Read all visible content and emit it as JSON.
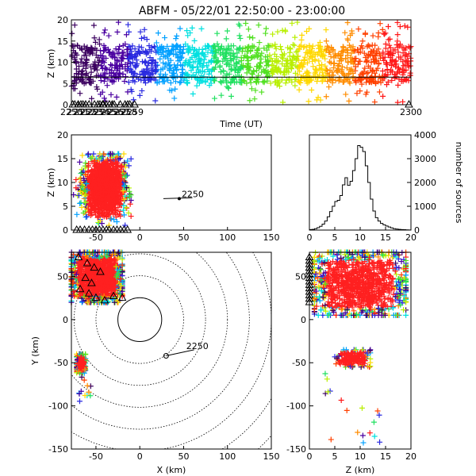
{
  "title": "ABFM - 05/22/01 22:50:00 - 23:00:00",
  "colors": {
    "background": "#ffffff",
    "axes": "#000000",
    "dense_core": "#ff2020",
    "time_rainbow": [
      "#3b005f",
      "#4a00a0",
      "#2a2ae0",
      "#00a0ff",
      "#00e0e0",
      "#20e060",
      "#50e020",
      "#b8ef00",
      "#ffd800",
      "#ff8c00",
      "#ff4000",
      "#ff1818"
    ]
  },
  "chart_data": [
    {
      "id": "time-height",
      "type": "scatter",
      "title": "ABFM - 05/22/01 22:50:00 - 23:00:00",
      "xlabel": "Time (UT)",
      "ylabel": "Z (km)",
      "xlim": [
        2250,
        2300
      ],
      "ylim": [
        0,
        20
      ],
      "x_ticks": [
        "2250",
        "2251",
        "2252",
        "2253",
        "2254",
        "2255",
        "2256",
        "2257",
        "2258",
        "2259",
        "2300"
      ],
      "y_ticks": [
        "0",
        "5",
        "10",
        "15",
        "20"
      ],
      "reference_line_z": 6.5,
      "source_band": {
        "core_z": [
          5,
          14
        ],
        "scatter_z": [
          0.5,
          19.5
        ],
        "color": "rainbow by time"
      },
      "station_markers": {
        "symbol": "triangle",
        "z": 0,
        "x": [
          2250.2,
          2250.5,
          2251.0,
          2251.4,
          2251.7,
          2252.1,
          2252.6,
          2253.4,
          2253.9,
          2254.2,
          2254.6,
          2254.7,
          2255.1,
          2255.6,
          2256.0,
          2256.3,
          2257.2,
          2257.9,
          2258.3,
          2258.6,
          2259.3,
          2299.7
        ]
      }
    },
    {
      "id": "x-z",
      "type": "scatter",
      "xlabel": "",
      "ylabel": "Z (km)",
      "xlim": [
        -78,
        150
      ],
      "ylim": [
        0,
        20
      ],
      "x_ticks": [
        "-50",
        "0",
        "50",
        "100",
        "150"
      ],
      "y_ticks": [
        "0",
        "5",
        "10",
        "15",
        "20"
      ],
      "source_cloud": {
        "x_range": [
          -78,
          -10
        ],
        "z_range": [
          1,
          16
        ],
        "peak_x": -40,
        "color": "red core with multicolor edges"
      },
      "track": {
        "x": [
          45,
          60
        ],
        "z": [
          6.6,
          6.8
        ],
        "label": "2250"
      },
      "station_markers": {
        "symbol": "triangle",
        "z": 0,
        "x": [
          -72,
          -68,
          -63,
          -58,
          -54,
          -50,
          -46,
          -42,
          -38,
          -35,
          -30,
          -26,
          -22,
          -18,
          -14
        ]
      }
    },
    {
      "id": "z-histogram",
      "type": "line",
      "xlabel": "",
      "ylabel": "number of sources",
      "xlim": [
        0,
        20
      ],
      "ylim": [
        0,
        4000
      ],
      "x_ticks": [
        "0",
        "5",
        "10",
        "15",
        "20"
      ],
      "y_ticks": [
        "0",
        "1000",
        "2000",
        "3000",
        "4000"
      ],
      "step_x": [
        0,
        0.5,
        1,
        1.5,
        2,
        2.5,
        3,
        3.5,
        4,
        4.5,
        5,
        5.5,
        6,
        6.5,
        7,
        7.5,
        8,
        8.5,
        9,
        9.5,
        10,
        10.5,
        11,
        11.5,
        12,
        12.5,
        13,
        13.5,
        14,
        14.5,
        15,
        15.5,
        16,
        16.5,
        17,
        17.5,
        18,
        18.5,
        19,
        19.5,
        20
      ],
      "step_counts": [
        20,
        30,
        60,
        100,
        160,
        250,
        380,
        560,
        780,
        1000,
        1200,
        1250,
        1450,
        1900,
        2200,
        1880,
        2050,
        2500,
        3000,
        3550,
        3480,
        3300,
        2700,
        2000,
        1300,
        800,
        520,
        380,
        280,
        220,
        170,
        130,
        90,
        60,
        40,
        30,
        20,
        15,
        10,
        5,
        0
      ]
    },
    {
      "id": "x-y",
      "type": "scatter",
      "xlabel": "X (km)",
      "ylabel": "Y (km)",
      "xlim": [
        -78,
        150
      ],
      "ylim": [
        -150,
        78
      ],
      "x_ticks": [
        "-50",
        "0",
        "50",
        "100",
        "150"
      ],
      "y_ticks": [
        "-150",
        "-100",
        "-50",
        "0",
        "50"
      ],
      "range_rings_km": [
        25,
        50,
        75,
        100,
        125,
        150,
        175,
        200
      ],
      "range_ring_center": [
        0,
        0
      ],
      "source_clusters": [
        {
          "x_range": [
            -78,
            -20
          ],
          "y_range": [
            20,
            78
          ],
          "color": "red core with multicolor edges"
        },
        {
          "x_range": [
            -72,
            -62
          ],
          "y_range": [
            -62,
            -40
          ],
          "color": "red core with multicolor edges"
        }
      ],
      "track": {
        "x": [
          30,
          62
        ],
        "y": [
          -42,
          -35
        ],
        "label": "2250"
      },
      "station_markers": {
        "symbol": "triangle",
        "points": [
          [
            -70,
            72
          ],
          [
            -60,
            65
          ],
          [
            -52,
            60
          ],
          [
            -45,
            55
          ],
          [
            -62,
            48
          ],
          [
            -55,
            42
          ],
          [
            -68,
            35
          ],
          [
            -58,
            30
          ],
          [
            -50,
            25
          ],
          [
            -40,
            22
          ],
          [
            -30,
            27
          ],
          [
            -20,
            25
          ]
        ]
      }
    },
    {
      "id": "z-y",
      "type": "scatter",
      "xlabel": "Z (km)",
      "ylabel": "",
      "xlim": [
        0,
        20
      ],
      "ylim": [
        -150,
        78
      ],
      "x_ticks": [
        "0",
        "5",
        "10",
        "15",
        "20"
      ],
      "y_ticks": [
        "-150",
        "-100",
        "-50",
        "0",
        "50"
      ],
      "source_clusters": [
        {
          "z_range": [
            1,
            19
          ],
          "y_range": [
            5,
            78
          ],
          "color": "red core with multicolor edges"
        },
        {
          "z_range": [
            5,
            12
          ],
          "y_range": [
            -55,
            -35
          ],
          "color": "red core with multicolor edges"
        }
      ],
      "outliers": {
        "z_range": [
          3,
          14
        ],
        "y_range": [
          -145,
          -60
        ]
      },
      "station_markers": {
        "symbol": "triangle",
        "z": 0,
        "y": [
          72,
          68,
          64,
          60,
          56,
          52,
          48,
          44,
          40,
          36,
          32,
          28,
          24,
          20
        ]
      }
    }
  ]
}
